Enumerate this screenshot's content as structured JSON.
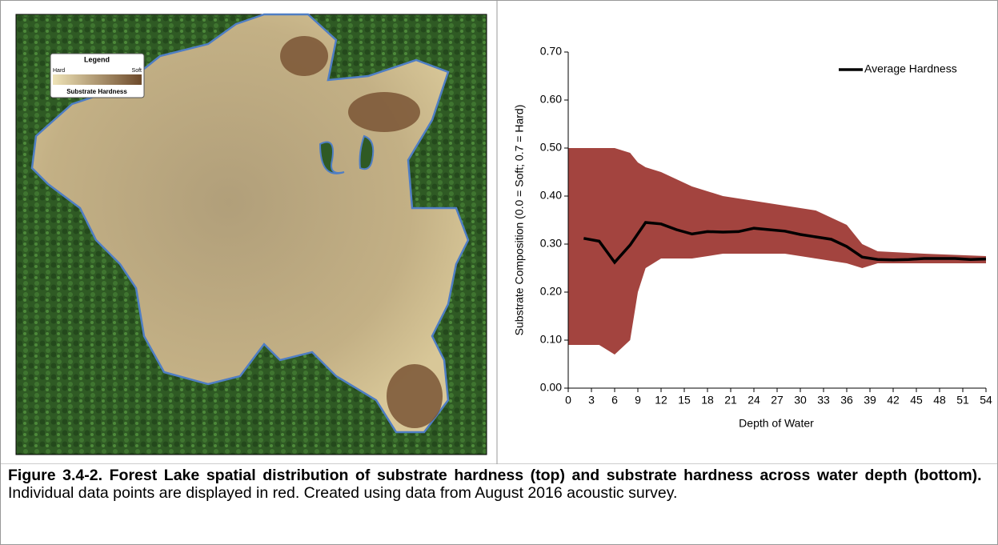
{
  "map": {
    "legend": {
      "title": "Legend",
      "hard": "Hard",
      "soft": "Soft",
      "label": "Substrate Hardness"
    }
  },
  "chart_data": {
    "type": "line",
    "y_label": "Substrate Composition (0.0 = Soft; 0.7 = Hard)",
    "x_label": "Depth of Water",
    "xlim": [
      0,
      54
    ],
    "xticks": [
      0,
      3,
      6,
      9,
      12,
      15,
      18,
      21,
      24,
      27,
      30,
      33,
      36,
      39,
      42,
      45,
      48,
      51,
      54
    ],
    "ylim": [
      0,
      0.7
    ],
    "yticks": [
      {
        "value": 0,
        "label": "0.00"
      },
      {
        "value": 0.1,
        "label": "0.10"
      },
      {
        "value": 0.2,
        "label": "0.20"
      },
      {
        "value": 0.3,
        "label": "0.30"
      },
      {
        "value": 0.4,
        "label": "0.40"
      },
      {
        "value": 0.5,
        "label": "0.50"
      },
      {
        "value": 0.6,
        "label": "0.60"
      },
      {
        "value": 0.7,
        "label": "0.70"
      }
    ],
    "legend": "upper right",
    "series": [
      {
        "name": "Average Hardness",
        "color": "#000000",
        "x": [
          2,
          4,
          6,
          8,
          10,
          12,
          14,
          16,
          18,
          20,
          22,
          24,
          26,
          28,
          30,
          32,
          34,
          36,
          38,
          40,
          42,
          44,
          46,
          48,
          50,
          52,
          54
        ],
        "values": [
          0.312,
          0.306,
          0.262,
          0.298,
          0.345,
          0.342,
          0.33,
          0.321,
          0.326,
          0.325,
          0.326,
          0.333,
          0.33,
          0.327,
          0.32,
          0.315,
          0.31,
          0.295,
          0.273,
          0.268,
          0.267,
          0.268,
          0.27,
          0.27,
          0.27,
          0.268,
          0.269
        ]
      }
    ],
    "point_range": {
      "color": "#9e3a35",
      "x": [
        0,
        2,
        4,
        6,
        8,
        9,
        10,
        12,
        16,
        20,
        24,
        28,
        32,
        36,
        38,
        40,
        46,
        54
      ],
      "low": [
        0.09,
        0.09,
        0.09,
        0.07,
        0.1,
        0.2,
        0.25,
        0.27,
        0.27,
        0.28,
        0.28,
        0.28,
        0.27,
        0.26,
        0.25,
        0.26,
        0.26,
        0.26
      ],
      "high": [
        0.5,
        0.5,
        0.5,
        0.5,
        0.49,
        0.47,
        0.46,
        0.45,
        0.42,
        0.4,
        0.39,
        0.38,
        0.37,
        0.34,
        0.3,
        0.285,
        0.28,
        0.275
      ]
    }
  },
  "caption": {
    "bold": "Figure 3.4-2. Forest Lake spatial distribution of substrate hardness (top) and substrate hardness across water depth (bottom).",
    "text": "Individual data points are displayed in red.  Created using data from August 2016 acoustic survey."
  }
}
